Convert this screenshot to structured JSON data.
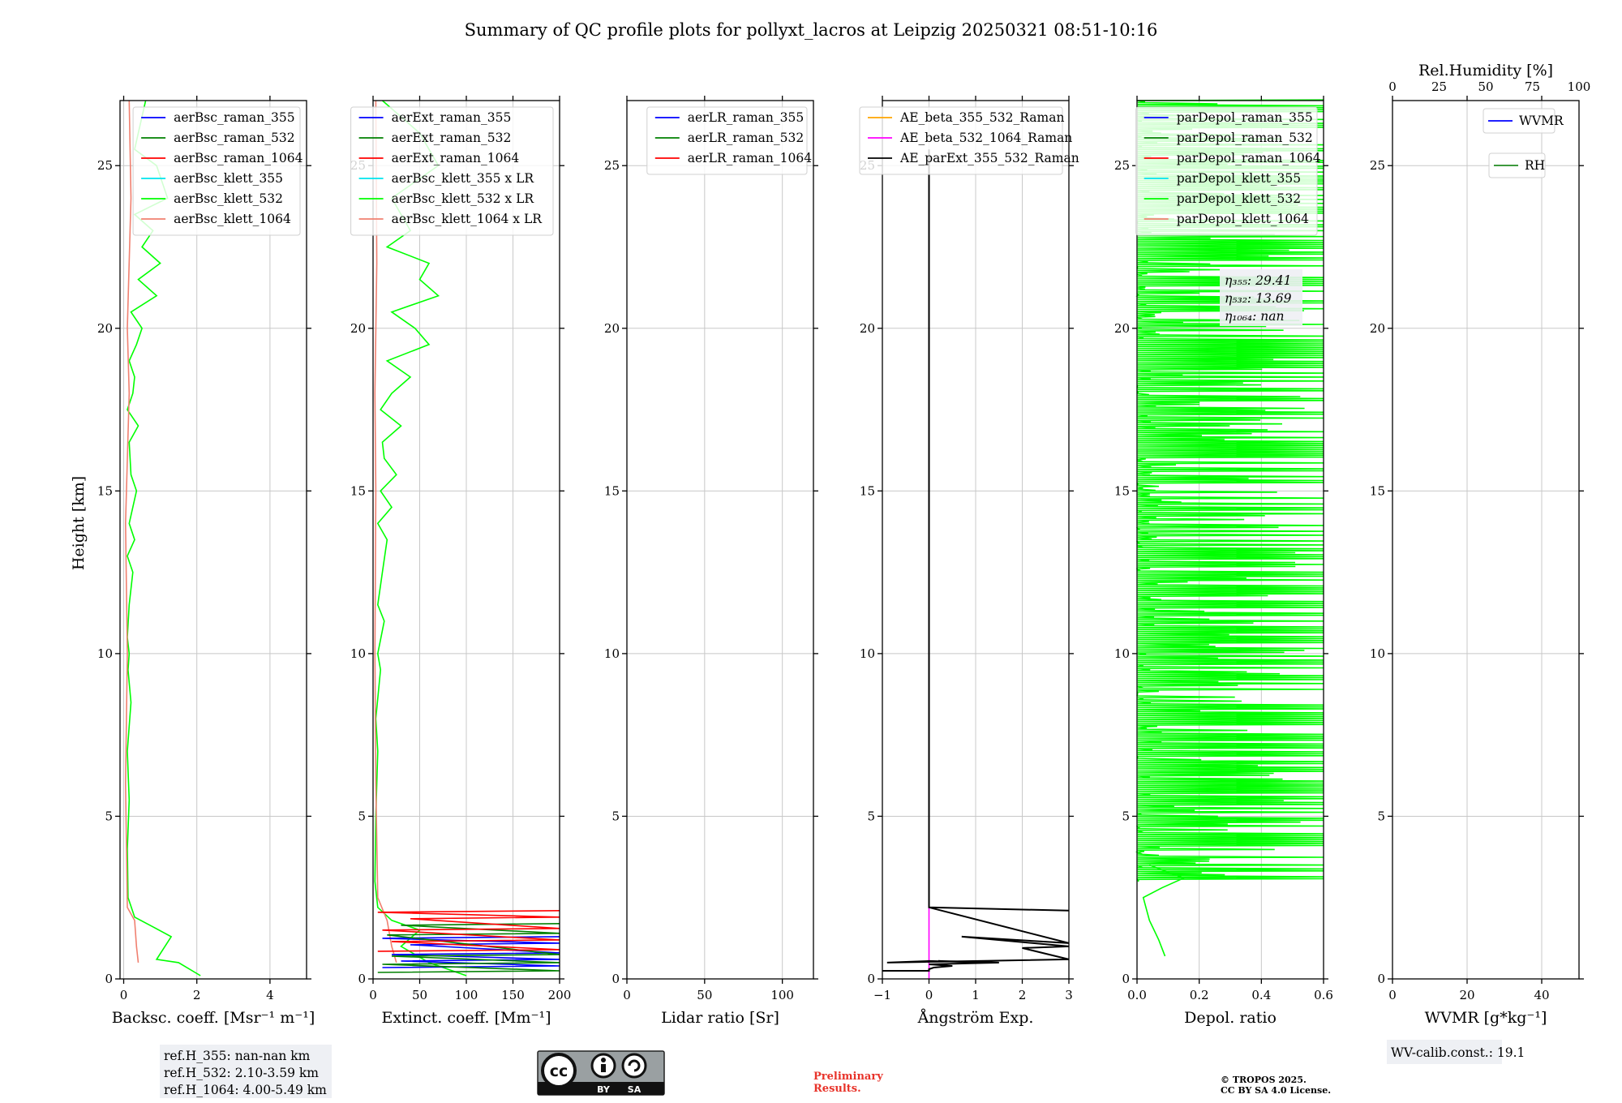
{
  "title": "Summary of QC profile plots for pollyxt_lacros at Leipzig 20250321 08:51-10:16",
  "y_axis_label": "Height [km]",
  "colors": {
    "blue": "#0000ff",
    "green": "#008000",
    "red": "#ff0000",
    "cyan": "#00e5ee",
    "lime": "#00ff00",
    "salmon": "#f08070",
    "orange": "#ffa500",
    "magenta": "#ff00ff",
    "black": "#000000",
    "legend_green": "#228b22"
  },
  "chart_data": [
    {
      "type": "line",
      "name": "backscatter",
      "xlabel": "Backsc. coeff. [Msr⁻¹ m⁻¹]",
      "xlim": [
        -0.1,
        5
      ],
      "ylim": [
        0,
        27
      ],
      "xticks": [
        0,
        2,
        4
      ],
      "yticks": [
        0,
        5,
        10,
        15,
        20,
        25
      ],
      "grid": true,
      "legend_placement": "top-right",
      "legend": [
        "aerBsc_raman_355",
        "aerBsc_raman_532",
        "aerBsc_raman_1064",
        "aerBsc_klett_355",
        "aerBsc_klett_532",
        "aerBsc_klett_1064"
      ],
      "legend_colors": [
        "blue",
        "green",
        "red",
        "cyan",
        "lime",
        "salmon"
      ],
      "series": [
        {
          "name": "aerBsc_klett_532",
          "color": "lime",
          "x": [
            2.1,
            1.5,
            0.9,
            1.3,
            0.8,
            0.3,
            0.12,
            0.1,
            0.15,
            0.1,
            0.2,
            0.12,
            0.15,
            0.1,
            0.15,
            0.25,
            0.1,
            0.3,
            0.15,
            0.35,
            0.2,
            0.15,
            0.4,
            0.1,
            0.25,
            0.3,
            0.15,
            0.35,
            0.5,
            0.2,
            0.9,
            0.4,
            1.0,
            0.5,
            0.8,
            0.3,
            1.2,
            0.9,
            0.3,
            0.4,
            0.6
          ],
          "y": [
            0.1,
            0.5,
            0.6,
            1.3,
            1.6,
            1.9,
            2.5,
            4.0,
            5.5,
            7.0,
            8.5,
            9.5,
            10.0,
            10.5,
            11.5,
            12.5,
            13.0,
            13.5,
            14.0,
            15.0,
            15.5,
            16.5,
            17.0,
            17.5,
            18.0,
            18.5,
            19.0,
            19.5,
            20.0,
            20.5,
            21.0,
            21.5,
            22.0,
            22.5,
            23.0,
            23.5,
            24.0,
            25.0,
            25.5,
            26.0,
            27.0
          ]
        },
        {
          "name": "aerBsc_klett_1064",
          "color": "salmon",
          "x": [
            0.4,
            0.35,
            0.3,
            0.1,
            0.05,
            0.1,
            0.05,
            0.15,
            0.1,
            0.2,
            0.15
          ],
          "y": [
            0.5,
            1.0,
            1.8,
            2.2,
            6.0,
            10.0,
            14.0,
            18.0,
            20.0,
            24.0,
            27.0
          ]
        }
      ],
      "annotation": [
        "ref.H_355: nan-nan km",
        "ref.H_532: 2.10-3.59 km",
        "ref.H_1064: 4.00-5.49 km"
      ]
    },
    {
      "type": "line",
      "name": "extinction",
      "xlabel": "Extinct. coeff. [Mm⁻¹]",
      "xlim": [
        0,
        200
      ],
      "ylim": [
        0,
        27
      ],
      "xticks": [
        0,
        50,
        100,
        150,
        200
      ],
      "yticks": [
        0,
        5,
        10,
        15,
        20,
        25
      ],
      "grid": true,
      "legend_placement": "top-right",
      "legend": [
        "aerExt_raman_355",
        "aerExt_raman_532",
        "aerExt_raman_1064",
        "aerBsc_klett_355 x LR",
        "aerBsc_klett_532 x LR",
        "aerBsc_klett_1064 x LR"
      ],
      "legend_colors": [
        "blue",
        "green",
        "red",
        "cyan",
        "lime",
        "salmon"
      ],
      "series": [
        {
          "name": "aerBsc_klett_532 x LR",
          "color": "lime",
          "x": [
            100,
            60,
            30,
            50,
            20,
            5,
            2,
            3,
            5,
            3,
            8,
            5,
            12,
            5,
            10,
            15,
            5,
            20,
            8,
            25,
            12,
            10,
            30,
            8,
            20,
            40,
            15,
            60,
            45,
            20,
            70,
            50,
            60,
            15,
            40,
            20,
            70,
            50,
            10
          ],
          "y": [
            0.1,
            0.5,
            1.0,
            1.5,
            1.8,
            2.2,
            3.0,
            5.0,
            7.0,
            8.0,
            9.5,
            10.0,
            11.0,
            11.5,
            12.5,
            13.5,
            14.0,
            14.5,
            15.0,
            15.5,
            16.0,
            16.5,
            17.0,
            17.5,
            18.0,
            18.5,
            19.0,
            19.5,
            20.0,
            20.5,
            21.0,
            21.5,
            22.0,
            22.5,
            23.0,
            24.0,
            25.0,
            26.0,
            27.0
          ]
        },
        {
          "name": "aerBsc_klett_1064 x LR",
          "color": "salmon",
          "x": [
            25,
            20,
            15,
            5,
            3,
            2,
            3,
            2,
            4,
            3
          ],
          "y": [
            0.5,
            1.0,
            1.8,
            2.5,
            6.0,
            10.0,
            15.0,
            18.0,
            22.0,
            27.0
          ]
        },
        {
          "name": "aerExt_raman_355",
          "color": "blue",
          "x": [
            10,
            200,
            30,
            200,
            20,
            200,
            40,
            200,
            10,
            200
          ],
          "y": [
            0.35,
            0.4,
            0.55,
            0.6,
            0.75,
            0.8,
            1.05,
            1.1,
            1.25,
            1.3
          ]
        },
        {
          "name": "aerExt_raman_532",
          "color": "green",
          "x": [
            5,
            200,
            10,
            200,
            20,
            200,
            15,
            200,
            30,
            200
          ],
          "y": [
            0.2,
            0.25,
            0.45,
            0.5,
            0.7,
            0.75,
            1.35,
            1.4,
            1.65,
            1.7
          ]
        },
        {
          "name": "aerExt_raman_1064",
          "color": "red",
          "x": [
            5,
            200,
            20,
            200,
            10,
            200,
            40,
            200,
            5,
            200
          ],
          "y": [
            0.85,
            0.9,
            1.15,
            1.2,
            1.5,
            1.55,
            1.85,
            1.9,
            2.05,
            2.1
          ]
        }
      ]
    },
    {
      "type": "line",
      "name": "lidar-ratio",
      "xlabel": "Lidar ratio [Sr]",
      "xlim": [
        0,
        120
      ],
      "ylim": [
        0,
        27
      ],
      "xticks": [
        0,
        50,
        100
      ],
      "yticks": [
        0,
        5,
        10,
        15,
        20,
        25
      ],
      "grid": true,
      "legend_placement": "top-right",
      "legend": [
        "aerLR_raman_355",
        "aerLR_raman_532",
        "aerLR_raman_1064"
      ],
      "legend_colors": [
        "blue",
        "green",
        "red"
      ],
      "series": []
    },
    {
      "type": "line",
      "name": "angstrom",
      "xlabel": "Ångström Exp.",
      "xlim": [
        -1,
        3
      ],
      "ylim": [
        0,
        27
      ],
      "xticks": [
        -1,
        0,
        1,
        2,
        3
      ],
      "yticks": [
        0,
        5,
        10,
        15,
        20,
        25
      ],
      "grid": true,
      "legend_placement": "top-right",
      "legend": [
        "AE_beta_355_532_Raman",
        "AE_beta_532_1064_Raman",
        "AE_parExt_355_532_Raman"
      ],
      "legend_colors": [
        "orange",
        "magenta",
        "black"
      ],
      "series": [
        {
          "name": "AE_beta_532_1064_Raman",
          "color": "magenta",
          "x": [
            0,
            0
          ],
          "y": [
            0,
            2.2
          ]
        },
        {
          "name": "AE_parExt_355_532_Raman",
          "color": "black",
          "x": [
            -1,
            0,
            0,
            0.1,
            0.5,
            0,
            1.5,
            0.2,
            1.2,
            0,
            -0.9,
            3,
            2.0,
            3,
            0.7,
            3,
            0,
            3,
            0,
            0
          ],
          "y": [
            0.25,
            0.25,
            0.3,
            0.35,
            0.4,
            0.45,
            0.5,
            0.55,
            0.5,
            0.55,
            0.5,
            0.6,
            0.95,
            1.0,
            1.3,
            1.1,
            2.2,
            2.1,
            2.2,
            25.5
          ]
        }
      ]
    },
    {
      "type": "line",
      "name": "depolarization",
      "xlabel": "Depol. ratio",
      "xlim": [
        0,
        0.6
      ],
      "ylim": [
        0,
        27
      ],
      "xticks": [
        0,
        0.2,
        0.4,
        0.6
      ],
      "xtick_labels": [
        "0.0",
        "0.2",
        "0.4",
        "0.6"
      ],
      "yticks": [
        0,
        5,
        10,
        15,
        20,
        25
      ],
      "grid": true,
      "legend_placement": "top-right",
      "legend": [
        "parDepol_raman_355",
        "parDepol_raman_532",
        "parDepol_raman_1064",
        "parDepol_klett_355",
        "parDepol_klett_532",
        "parDepol_klett_1064"
      ],
      "legend_colors": [
        "blue",
        "green",
        "red",
        "cyan",
        "lime",
        "salmon"
      ],
      "series": [
        {
          "name": "parDepol_klett_532",
          "color": "lime",
          "x": [
            0.09,
            0.07,
            0.04,
            0.02,
            0.08,
            0.15,
            0.04
          ],
          "y": [
            0.7,
            1.2,
            1.8,
            2.5,
            2.8,
            3.1,
            3.5
          ]
        }
      ],
      "spike_range_km": [
        3.0,
        27.0
      ],
      "eta_text": [
        "η₃₅₅: 29.41",
        "η₅₃₂: 13.69",
        "η₁₀₆₄: nan"
      ]
    },
    {
      "type": "line",
      "name": "wvmr",
      "xlabel": "WVMR [g*kg⁻¹]",
      "xlim": [
        0,
        50
      ],
      "ylim": [
        0,
        27
      ],
      "xticks": [
        0,
        20,
        40
      ],
      "yticks": [
        0,
        5,
        10,
        15,
        20,
        25
      ],
      "grid": true,
      "top_axis": {
        "label": "Rel.Humidity [%]",
        "xlim": [
          0,
          100
        ],
        "xticks": [
          0,
          25,
          50,
          75,
          100
        ]
      },
      "legend": [
        "WVMR",
        "RH"
      ],
      "legend_colors": [
        "blue",
        "legend_green"
      ],
      "series": [],
      "annotation": "WV-calib.const.: 19.1"
    }
  ],
  "footer": {
    "license_badge": [
      "BY",
      "SA"
    ],
    "preliminary": [
      "Preliminary",
      "Results."
    ],
    "copyright": [
      "© TROPOS 2025.",
      "CC BY SA 4.0 License."
    ]
  }
}
